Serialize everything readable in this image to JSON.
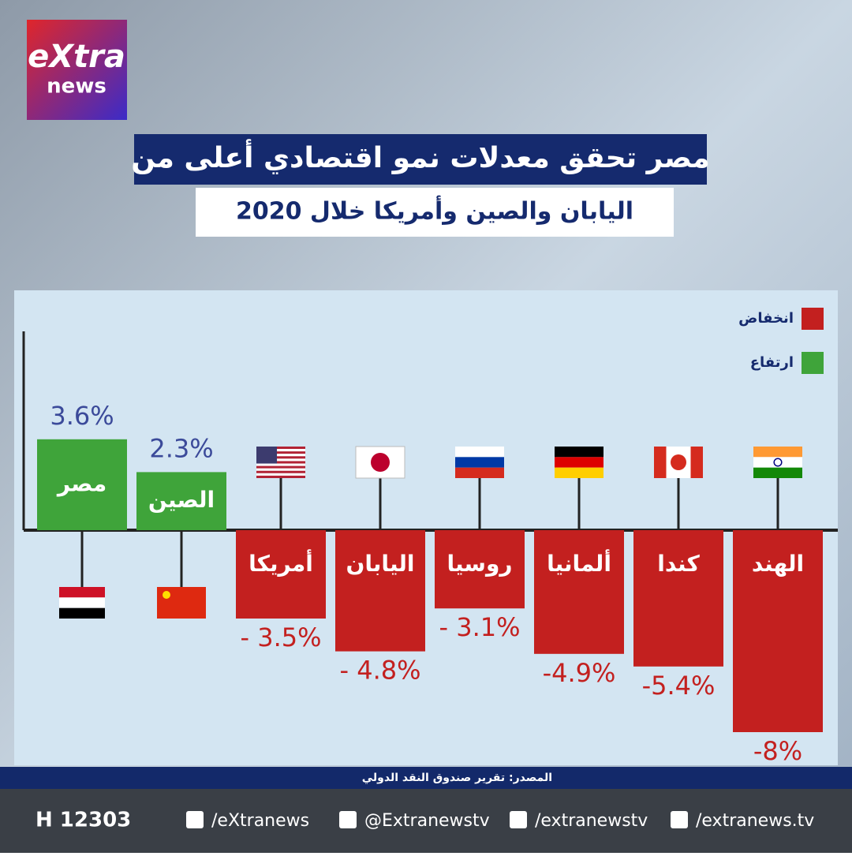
{
  "logo": {
    "top": "eXtra",
    "bottom": "news"
  },
  "chart_data": {
    "type": "bar",
    "title": "مصر تحقق معدلات نمو اقتصادي أعلى من",
    "subtitle": "اليابان والصين وأمريكا خلال 2020",
    "categories": [
      "مصر",
      "الصين",
      "أمريكا",
      "اليابان",
      "روسيا",
      "ألمانيا",
      "كندا",
      "الهند"
    ],
    "values": [
      3.6,
      2.3,
      -3.5,
      -4.8,
      -3.1,
      -4.9,
      -5.4,
      -8
    ],
    "value_labels": [
      "3.6%",
      "2.3%",
      "- 3.5%",
      "- 4.8%",
      "- 3.1%",
      "-4.9%",
      "-5.4%",
      "-8%"
    ],
    "legend": [
      {
        "label": "انخفاض",
        "color": "#c3201f"
      },
      {
        "label": "ارتفاع",
        "color": "#3fa43a"
      }
    ],
    "source": "المصدر: تقرير صندوق النقد الدولي"
  },
  "footer": {
    "hotline": "H 12303",
    "links": [
      "/eXtranews",
      "@Extranewstv",
      "/extranewstv",
      "/extranews.tv"
    ]
  }
}
